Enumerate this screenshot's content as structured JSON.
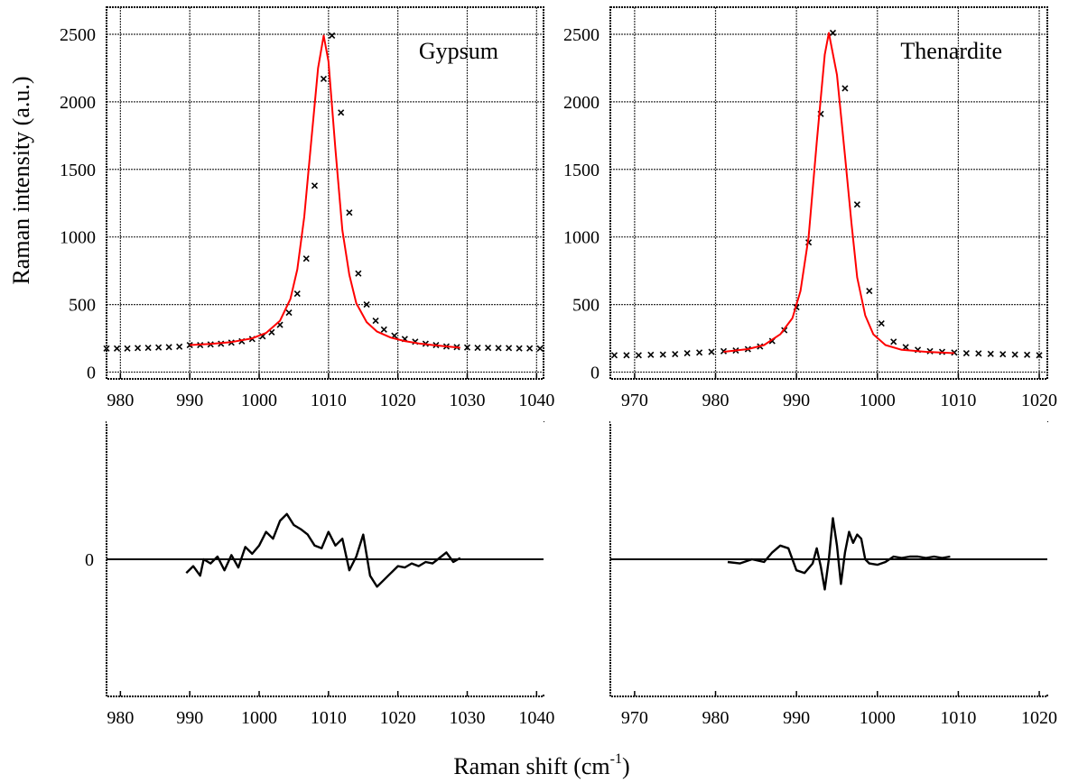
{
  "figure": {
    "ylabel": "Raman intensity (a.u.)",
    "xlabel_main": "Raman shift (cm",
    "xlabel_sup": "-1",
    "xlabel_close": ")"
  },
  "chart_data": [
    {
      "type": "scatter",
      "panel": "top-left",
      "label": "Gypsum",
      "label_position": "top-right",
      "xlim": [
        978,
        1041
      ],
      "ylim": [
        -50,
        2700
      ],
      "xticks": [
        980,
        990,
        1000,
        1010,
        1020,
        1030,
        1040
      ],
      "yticks": [
        0,
        500,
        1000,
        1500,
        2000,
        2500
      ],
      "grid": true,
      "series": [
        {
          "kind": "markers",
          "marker": "x",
          "color": "#000000",
          "x": [
            978,
            979.5,
            981,
            982.5,
            984,
            985.5,
            987,
            988.5,
            990,
            991.5,
            993,
            994.5,
            996,
            997.5,
            999,
            1000.5,
            1001.8,
            1003,
            1004.3,
            1005.5,
            1006.8,
            1008,
            1009.3,
            1010.5,
            1011.8,
            1013,
            1014.3,
            1015.5,
            1016.8,
            1018,
            1019.5,
            1021,
            1022.5,
            1024,
            1025.5,
            1027,
            1028.5,
            1030,
            1031.5,
            1033,
            1034.5,
            1036,
            1037.5,
            1039,
            1040.5
          ],
          "y": [
            175,
            175,
            175,
            178,
            180,
            182,
            185,
            188,
            200,
            200,
            205,
            210,
            218,
            228,
            245,
            265,
            295,
            350,
            440,
            580,
            840,
            1380,
            2170,
            2490,
            1920,
            1180,
            730,
            500,
            380,
            315,
            270,
            245,
            225,
            210,
            200,
            190,
            185,
            182,
            180,
            180,
            178,
            178,
            176,
            176,
            175
          ]
        },
        {
          "kind": "line",
          "color": "#ff0000",
          "x": [
            990,
            993,
            996,
            999,
            1001,
            1003,
            1004.5,
            1005.5,
            1006.5,
            1007.5,
            1008.5,
            1009.3,
            1010,
            1011,
            1012,
            1013,
            1014,
            1015.5,
            1017,
            1019,
            1021,
            1023,
            1025,
            1027,
            1029
          ],
          "y": [
            200,
            208,
            222,
            250,
            290,
            380,
            540,
            760,
            1150,
            1700,
            2250,
            2490,
            2300,
            1650,
            1050,
            720,
            510,
            370,
            300,
            255,
            230,
            212,
            200,
            190,
            180
          ]
        }
      ]
    },
    {
      "type": "scatter",
      "panel": "top-right",
      "label": "Thenardite",
      "label_position": "top-right",
      "xlim": [
        967,
        1021
      ],
      "ylim": [
        -50,
        2700
      ],
      "xticks": [
        970,
        980,
        990,
        1000,
        1010,
        1020
      ],
      "yticks": [
        0,
        500,
        1000,
        1500,
        2000,
        2500
      ],
      "grid": true,
      "series": [
        {
          "kind": "markers",
          "marker": "x",
          "color": "#000000",
          "x": [
            967.5,
            969,
            970.5,
            972,
            973.5,
            975,
            976.5,
            978,
            979.5,
            981,
            982.5,
            984,
            985.5,
            987,
            988.5,
            990,
            991.5,
            993,
            994.5,
            996,
            997.5,
            999,
            1000.5,
            1002,
            1003.5,
            1005,
            1006.5,
            1008,
            1009.5,
            1011,
            1012.5,
            1014,
            1015.5,
            1017,
            1018.5,
            1020
          ],
          "y": [
            125,
            125,
            125,
            128,
            130,
            133,
            140,
            145,
            150,
            155,
            160,
            170,
            190,
            230,
            310,
            480,
            960,
            1910,
            2510,
            2100,
            1240,
            600,
            360,
            225,
            185,
            165,
            155,
            150,
            145,
            140,
            138,
            135,
            132,
            130,
            128,
            125
          ]
        },
        {
          "kind": "line",
          "color": "#ff0000",
          "x": [
            981,
            984,
            986,
            988,
            989.5,
            990.5,
            991.5,
            992.5,
            993.5,
            994,
            995,
            996,
            996.8,
            997.5,
            998.5,
            999.5,
            1001,
            1003,
            1006,
            1009.5
          ],
          "y": [
            150,
            170,
            200,
            280,
            400,
            600,
            1000,
            1700,
            2350,
            2510,
            2200,
            1600,
            1100,
            700,
            420,
            280,
            200,
            165,
            150,
            140
          ]
        }
      ]
    },
    {
      "type": "line",
      "panel": "bottom-left",
      "xlim": [
        978,
        1041
      ],
      "xticks": [
        980,
        990,
        1000,
        1010,
        1020,
        1030,
        1040
      ],
      "yticks": [
        0
      ],
      "ylim": [
        -1,
        1
      ],
      "grid": false,
      "series": [
        {
          "kind": "residual",
          "color": "#000000",
          "x": [
            989.5,
            990.5,
            991.5,
            992,
            993,
            994,
            995,
            996,
            997,
            998,
            999,
            1000,
            1001,
            1002,
            1003,
            1004,
            1005,
            1006,
            1007,
            1008,
            1009,
            1010,
            1011,
            1012,
            1013,
            1014,
            1015,
            1016,
            1017,
            1018,
            1019,
            1020,
            1021,
            1022,
            1023,
            1024,
            1025,
            1026,
            1027,
            1028,
            1029
          ],
          "y": [
            -0.1,
            -0.05,
            -0.12,
            0.0,
            -0.03,
            0.02,
            -0.08,
            0.03,
            -0.06,
            0.09,
            0.04,
            0.1,
            0.2,
            0.15,
            0.28,
            0.33,
            0.25,
            0.22,
            0.18,
            0.1,
            0.08,
            0.2,
            0.1,
            0.15,
            -0.08,
            0.02,
            0.18,
            -0.12,
            -0.2,
            -0.15,
            -0.1,
            -0.05,
            -0.06,
            -0.03,
            -0.05,
            -0.02,
            -0.03,
            0.01,
            0.05,
            -0.02,
            0.01
          ]
        }
      ]
    },
    {
      "type": "line",
      "panel": "bottom-right",
      "xlim": [
        967,
        1021
      ],
      "xticks": [
        970,
        980,
        990,
        1000,
        1010,
        1020
      ],
      "ylim": [
        -1,
        1
      ],
      "grid": false,
      "series": [
        {
          "kind": "residual",
          "color": "#000000",
          "x": [
            981.5,
            983,
            984.5,
            986,
            987,
            988,
            989,
            990,
            991,
            992,
            992.5,
            993,
            993.5,
            994,
            994.5,
            995,
            995.5,
            996,
            996.5,
            997,
            997.5,
            998,
            998.5,
            999,
            1000,
            1001,
            1002,
            1003,
            1004,
            1005,
            1006,
            1007,
            1008,
            1009
          ],
          "y": [
            -0.02,
            -0.03,
            0.0,
            -0.02,
            0.05,
            0.1,
            0.08,
            -0.08,
            -0.1,
            -0.03,
            0.08,
            -0.05,
            -0.22,
            0.0,
            0.3,
            0.1,
            -0.18,
            0.05,
            0.2,
            0.12,
            0.18,
            0.15,
            0.0,
            -0.03,
            -0.04,
            -0.02,
            0.02,
            0.01,
            0.02,
            0.02,
            0.01,
            0.02,
            0.01,
            0.02
          ]
        }
      ]
    }
  ]
}
